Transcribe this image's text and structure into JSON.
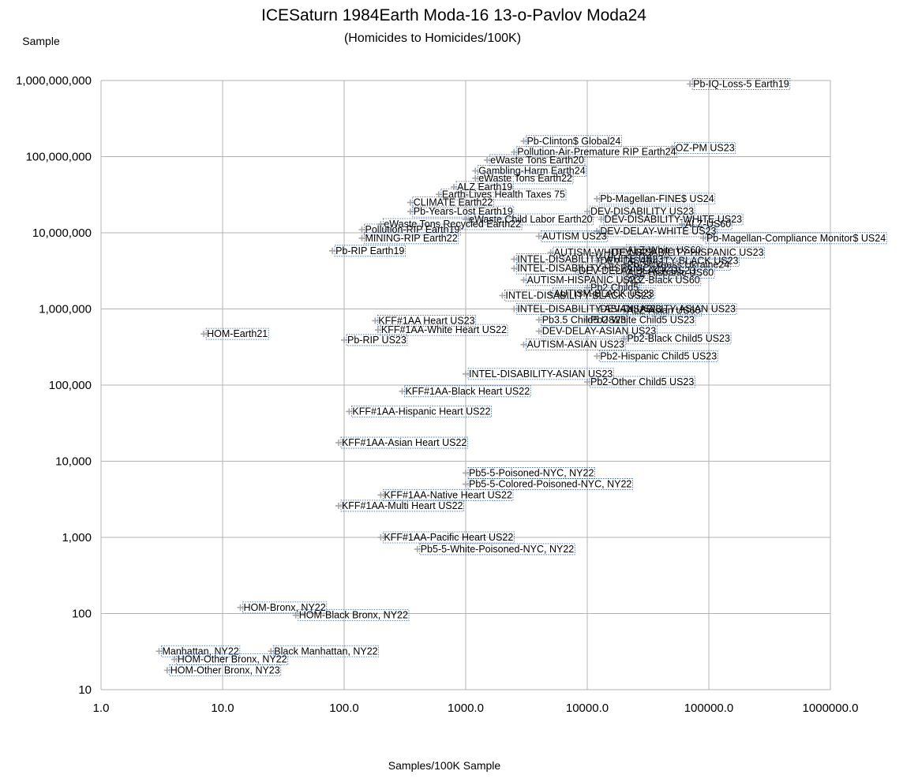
{
  "chart_data": {
    "type": "scatter",
    "title": "ICESaturn 1984Earth Moda-16 13-o-Pavlov Moda24",
    "subtitle": "(Homicides to Homicides/100K)",
    "xlabel": "Samples/100K Sample",
    "ylabel": "Sample",
    "x_scale": "log",
    "y_scale": "log",
    "xlim": [
      1,
      1000000
    ],
    "ylim": [
      10,
      1000000000
    ],
    "grid": true,
    "legend": "none",
    "marker": "plus",
    "marker_color": "#a6a6a6",
    "x_ticks": [
      {
        "value": 1,
        "label": "1.0"
      },
      {
        "value": 10,
        "label": "10.0"
      },
      {
        "value": 100,
        "label": "100.0"
      },
      {
        "value": 1000,
        "label": "1000.0"
      },
      {
        "value": 10000,
        "label": "10000.0"
      },
      {
        "value": 100000,
        "label": "100000.0"
      },
      {
        "value": 1000000,
        "label": "1000000.0"
      }
    ],
    "y_ticks": [
      {
        "value": 10,
        "label": "10"
      },
      {
        "value": 100,
        "label": "100"
      },
      {
        "value": 1000,
        "label": "1,000"
      },
      {
        "value": 10000,
        "label": "10,000"
      },
      {
        "value": 100000,
        "label": "100,000"
      },
      {
        "value": 1000000,
        "label": "1,000,000"
      },
      {
        "value": 10000000,
        "label": "10,000,000"
      },
      {
        "value": 100000000,
        "label": "100,000,000"
      },
      {
        "value": 1000000000,
        "label": "1,000,000,000"
      }
    ],
    "labeled_points": [
      {
        "label": "Pb-IQ-Loss-5 Earth19",
        "x": 70000,
        "y": 900000000
      },
      {
        "label": "Pb-Clinton$ Global24",
        "x": 3000,
        "y": 160000000
      },
      {
        "label": "OZ-PM US23",
        "x": 50000,
        "y": 130000000
      },
      {
        "label": "Pollution-Air-Premature RIP Earth24",
        "x": 2500,
        "y": 115000000
      },
      {
        "label": "eWaste Tons Earth20",
        "x": 1500,
        "y": 90000000
      },
      {
        "label": "Gambling-Harm Earth24",
        "x": 1200,
        "y": 65000000
      },
      {
        "label": "eWaste Tons Earth22",
        "x": 1200,
        "y": 52000000
      },
      {
        "label": "ALZ Earth19",
        "x": 800,
        "y": 40000000
      },
      {
        "label": "Earth-Lives Health Taxes 75",
        "x": 600,
        "y": 32000000
      },
      {
        "label": "Pb-Magellan-FINE$ US24",
        "x": 12000,
        "y": 28000000
      },
      {
        "label": "CLIMATE Earth22",
        "x": 350,
        "y": 25000000
      },
      {
        "label": "DEV-DISABILITY US23",
        "x": 10000,
        "y": 19000000
      },
      {
        "label": "Pb-Years-Lost Earth19",
        "x": 350,
        "y": 19000000
      },
      {
        "label": "eWaste Child Labor Earth20",
        "x": 1000,
        "y": 15000000
      },
      {
        "label": "DEV-DISABILITY-WHITE US23",
        "x": 13000,
        "y": 15000000
      },
      {
        "label": "ALZ-US60",
        "x": 60000,
        "y": 13000000
      },
      {
        "label": "eWaste Tons Recycled Earth22",
        "x": 200,
        "y": 13000000
      },
      {
        "label": "Pollution-RIP Earth19",
        "x": 140,
        "y": 11000000
      },
      {
        "label": "DEV-DELAY-WHITE US23",
        "x": 12000,
        "y": 10500000
      },
      {
        "label": "AUTISM US23",
        "x": 4000,
        "y": 9000000
      },
      {
        "label": "MINING-RIP Earth22",
        "x": 140,
        "y": 8500000
      },
      {
        "label": "Pb-Magellan-Compliance Monitor$ US24",
        "x": 90000,
        "y": 8500000
      },
      {
        "label": "Pb-RIP Earth19",
        "x": 80,
        "y": 5800000
      },
      {
        "label": "ALZ-White US60",
        "x": 20000,
        "y": 5900000
      },
      {
        "label": "AUTISM-WHITE US23",
        "x": 5000,
        "y": 5500000
      },
      {
        "label": "DEV-DISABILITY-HISPANIC US23",
        "x": 15000,
        "y": 5500000
      },
      {
        "label": "INTEL-DISABILITY-WHITE US23",
        "x": 2500,
        "y": 4500000
      },
      {
        "label": "DEV-DISABILITY-BLACK US23",
        "x": 12000,
        "y": 4300000
      },
      {
        "label": "Pb-Sickness Ukraine24",
        "x": 20000,
        "y": 3800000
      },
      {
        "label": "INTEL-DISABILITY-HISPANIC US23",
        "x": 2500,
        "y": 3400000
      },
      {
        "label": "DEV-DELAY-BLACK US23",
        "x": 8000,
        "y": 3200000
      },
      {
        "label": "ALZ-Hispanic US60",
        "x": 20000,
        "y": 3000000
      },
      {
        "label": "AUTISM-HISPANIC US23",
        "x": 3000,
        "y": 2400000
      },
      {
        "label": "ALZ-Black US60",
        "x": 20000,
        "y": 2400000
      },
      {
        "label": "Pb2 Child5",
        "x": 10000,
        "y": 1900000
      },
      {
        "label": "AUTISM-BLACK US23",
        "x": 5000,
        "y": 1600000
      },
      {
        "label": "INTEL-DISABILITY-BLACK US23",
        "x": 2000,
        "y": 1500000
      },
      {
        "label": "INTEL-DISABILITY-ASIAN US23",
        "x": 2500,
        "y": 1000000
      },
      {
        "label": "DEV-DISABILITY-ASIAN US23",
        "x": 12000,
        "y": 1000000
      },
      {
        "label": "ALZ-Asian US60",
        "x": 20000,
        "y": 950000
      },
      {
        "label": "KFF#1AA Heart US23",
        "x": 180,
        "y": 700000
      },
      {
        "label": "Pb3.5 Child5 US23",
        "x": 4000,
        "y": 720000
      },
      {
        "label": "Pb2-White Child5 US23",
        "x": 10000,
        "y": 720000
      },
      {
        "label": "KFF#1AA-White Heart US22",
        "x": 190,
        "y": 530000
      },
      {
        "label": "DEV-DELAY-ASIAN US23",
        "x": 4000,
        "y": 510000
      },
      {
        "label": "HOM-Earth21",
        "x": 7,
        "y": 470000
      },
      {
        "label": "Pb2-Black Child5 US23",
        "x": 20000,
        "y": 410000
      },
      {
        "label": "Pb-RIP US23",
        "x": 100,
        "y": 390000
      },
      {
        "label": "AUTISM-ASIAN US23",
        "x": 3000,
        "y": 340000
      },
      {
        "label": "Pb2-Hispanic Child5 US23",
        "x": 12000,
        "y": 240000
      },
      {
        "label": "INTEL-DISABILITY-ASIAN US23",
        "x": 1000,
        "y": 140000
      },
      {
        "label": "Pb2-Other Child5 US23",
        "x": 10000,
        "y": 110000
      },
      {
        "label": "KFF#1AA-Black Heart US22",
        "x": 300,
        "y": 83000
      },
      {
        "label": "KFF#1AA-Hispanic Heart US22",
        "x": 110,
        "y": 45000
      },
      {
        "label": "KFF#1AA-Asian Heart US22",
        "x": 90,
        "y": 17500
      },
      {
        "label": "Pb5-5-Poisoned-NYC, NY22",
        "x": 1000,
        "y": 7000
      },
      {
        "label": "Pb5-5-Colored-Poisoned-NYC, NY22",
        "x": 1000,
        "y": 5000
      },
      {
        "label": "KFF#1AA-Native Heart US22",
        "x": 200,
        "y": 3600
      },
      {
        "label": "KFF#1AA-Multi Heart US22",
        "x": 90,
        "y": 2600
      },
      {
        "label": "KFF#1AA-Pacific Heart US22",
        "x": 200,
        "y": 1000
      },
      {
        "label": "Pb5-5-White-Poisoned-NYC, NY22",
        "x": 400,
        "y": 700
      },
      {
        "label": "HOM-Bronx, NY22",
        "x": 14,
        "y": 120
      },
      {
        "label": "HOM-Black Bronx, NY22",
        "x": 40,
        "y": 95
      },
      {
        "label": "Manhattan, NY22",
        "x": 3,
        "y": 32
      },
      {
        "label": "Black Manhattan, NY22",
        "x": 25,
        "y": 32
      },
      {
        "label": "HOM-Other Bronx, NY22",
        "x": 4,
        "y": 25
      },
      {
        "label": "HOM-Other Bronx, NY23",
        "x": 3.5,
        "y": 18
      }
    ]
  }
}
